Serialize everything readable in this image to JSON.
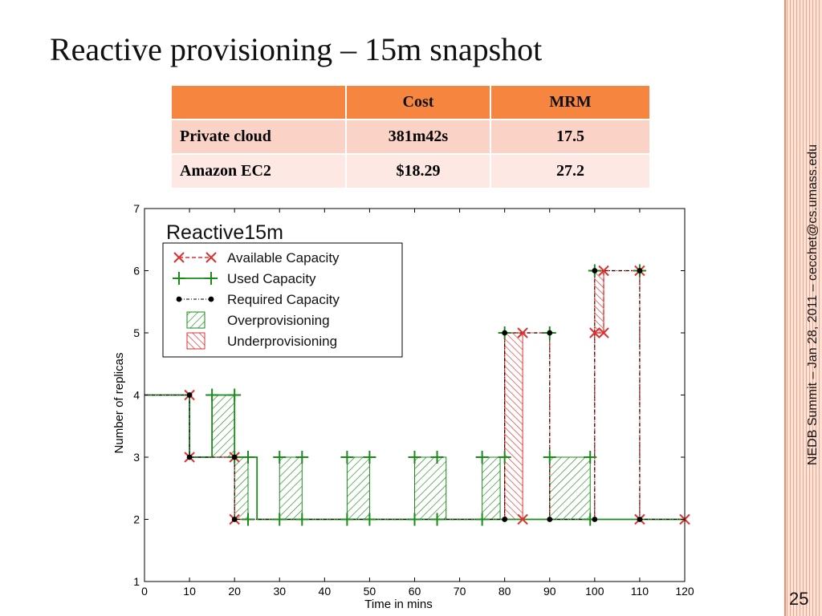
{
  "slide": {
    "title": "Reactive provisioning – 15m snapshot",
    "side_note": "NEDB Summit – Jan 28, 2011 – cecchet@cs.umass.edu",
    "page_number": "25"
  },
  "table": {
    "headers": [
      "",
      "Cost",
      "MRM"
    ],
    "rows": [
      [
        "Private cloud",
        "381m42s",
        "17.5"
      ],
      [
        "Amazon EC2",
        "$18.29",
        "27.2"
      ]
    ]
  },
  "colors": {
    "accent_orange": "#f6863f",
    "row_light": "#fbd2c6",
    "row_lighter": "#fde8e3",
    "available": "#e03030",
    "used": "#1a8a1a",
    "required": "#000000",
    "over_fill": "#1a8a1a",
    "under_fill": "#e03030"
  },
  "chart_data": {
    "type": "line",
    "title": "Reactive15m",
    "xlabel": "Time in mins",
    "ylabel": "Number of replicas",
    "xlim": [
      0,
      120
    ],
    "ylim": [
      1,
      7
    ],
    "xticks": [
      0,
      10,
      20,
      30,
      40,
      50,
      60,
      70,
      80,
      90,
      100,
      110,
      120
    ],
    "yticks": [
      1,
      2,
      3,
      4,
      5,
      6,
      7
    ],
    "grid": false,
    "legend_position": "top-left",
    "legend": [
      {
        "key": "available",
        "label": "Available Capacity",
        "marker": "x"
      },
      {
        "key": "used",
        "label": "Used Capacity",
        "marker": "+"
      },
      {
        "key": "required",
        "label": "Required Capacity",
        "marker": "dot"
      },
      {
        "key": "over",
        "label": "Overprovisioning",
        "marker": "hatch-green"
      },
      {
        "key": "under",
        "label": "Underprovisioning",
        "marker": "hatch-red"
      }
    ],
    "series": [
      {
        "name": "Available Capacity",
        "x": [
          0,
          10,
          10,
          20,
          20,
          80,
          80,
          84,
          84,
          90,
          90,
          100,
          100,
          102,
          102,
          110,
          110,
          120
        ],
        "y": [
          4,
          4,
          3,
          3,
          2,
          2,
          5,
          5,
          5,
          5,
          2,
          2,
          5,
          5,
          6,
          6,
          2,
          2
        ],
        "markers": [
          [
            10,
            4
          ],
          [
            10,
            3
          ],
          [
            20,
            3
          ],
          [
            20,
            2
          ],
          [
            84,
            5
          ],
          [
            84,
            2
          ],
          [
            100,
            5
          ],
          [
            102,
            5
          ],
          [
            102,
            6
          ],
          [
            110,
            6
          ],
          [
            110,
            2
          ],
          [
            120,
            2
          ]
        ]
      },
      {
        "name": "Used Capacity",
        "x": [
          0,
          10,
          10,
          15,
          15,
          20,
          20,
          25,
          25,
          120
        ],
        "y": [
          4,
          4,
          3,
          3,
          4,
          4,
          3,
          3,
          2,
          2
        ],
        "markers": [
          [
            15,
            4
          ],
          [
            20,
            4
          ],
          [
            20,
            3
          ],
          [
            23,
            3
          ],
          [
            23,
            2
          ],
          [
            30,
            3
          ],
          [
            30,
            2
          ],
          [
            35,
            3
          ],
          [
            35,
            2
          ],
          [
            45,
            3
          ],
          [
            45,
            2
          ],
          [
            50,
            3
          ],
          [
            50,
            2
          ],
          [
            60,
            3
          ],
          [
            60,
            2
          ],
          [
            65,
            3
          ],
          [
            65,
            2
          ],
          [
            75,
            3
          ],
          [
            75,
            2
          ],
          [
            80,
            3
          ],
          [
            80,
            5
          ],
          [
            90,
            5
          ],
          [
            90,
            3
          ],
          [
            99,
            3
          ],
          [
            99,
            2
          ],
          [
            100,
            6
          ],
          [
            110,
            6
          ]
        ]
      },
      {
        "name": "Required Capacity",
        "x": [
          0,
          10,
          10,
          20,
          20,
          80,
          80,
          90,
          90,
          100,
          100,
          110,
          110,
          120
        ],
        "y": [
          4,
          4,
          3,
          3,
          2,
          2,
          5,
          5,
          2,
          2,
          6,
          6,
          2,
          2
        ],
        "markers": [
          [
            10,
            4
          ],
          [
            10,
            3
          ],
          [
            20,
            3
          ],
          [
            20,
            2
          ],
          [
            80,
            5
          ],
          [
            80,
            2
          ],
          [
            90,
            5
          ],
          [
            90,
            2
          ],
          [
            100,
            6
          ],
          [
            100,
            2
          ],
          [
            110,
            6
          ],
          [
            110,
            2
          ]
        ]
      }
    ],
    "overprovisioning": [
      {
        "x": [
          15,
          20
        ],
        "y": [
          3,
          4
        ]
      },
      {
        "x": [
          20,
          23
        ],
        "y": [
          2,
          3
        ]
      },
      {
        "x": [
          30,
          35
        ],
        "y": [
          2,
          3
        ]
      },
      {
        "x": [
          45,
          50
        ],
        "y": [
          2,
          3
        ]
      },
      {
        "x": [
          60,
          67
        ],
        "y": [
          2,
          3
        ]
      },
      {
        "x": [
          75,
          79
        ],
        "y": [
          2,
          3
        ]
      },
      {
        "x": [
          90,
          99
        ],
        "y": [
          2,
          3
        ]
      }
    ],
    "underprovisioning": [
      {
        "x": [
          80,
          84
        ],
        "y": [
          2,
          5
        ]
      },
      {
        "x": [
          100,
          102
        ],
        "y": [
          5,
          6
        ]
      }
    ]
  }
}
